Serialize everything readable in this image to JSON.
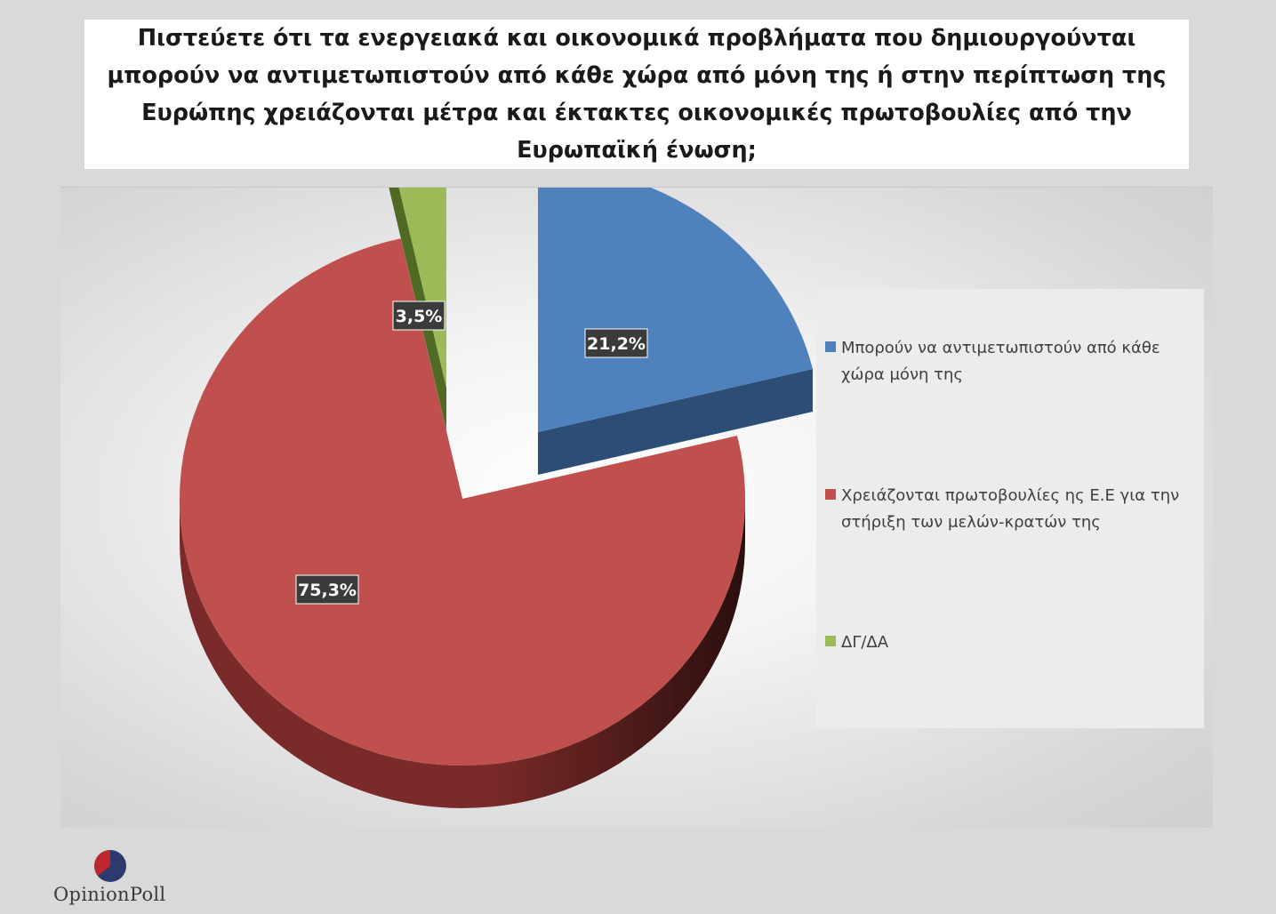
{
  "title": "Πιστεύετε ότι τα ενεργειακά και οικονομικά προβλήματα που δημιουργούνται μπορούν να αντιμετωπιστούν από κάθε χώρα από μόνη της ή στην περίπτωση της Ευρώπης χρειάζονται μέτρα και έκτακτες οικονομικές πρωτοβουλίες από την Ευρωπαϊκή ένωση;",
  "chart_data": {
    "type": "pie",
    "style": "3d exploded",
    "legend_position": "right",
    "slices": [
      {
        "label": "Μπορούν να αντιμετωπιστούν από κάθε χώρα μόνη της",
        "value": 21.2,
        "value_label": "21,2%",
        "color": "#4f81bd",
        "side_color": "#2c4d75"
      },
      {
        "label": "Χρειάζονται πρωτοβουλίες ης Ε.Ε για την στήριξη των μελών-κρατών της",
        "value": 75.3,
        "value_label": "75,3%",
        "color": "#c0504d",
        "side_color": "#7a2a28"
      },
      {
        "label": "ΔΓ/ΔΑ",
        "value": 3.5,
        "value_label": "3,5%",
        "color": "#9bbb59",
        "side_color": "#4f6a22"
      }
    ]
  },
  "logo": {
    "text_part1": "Opinion",
    "text_part2": "Poll",
    "colors": [
      "#c0272d",
      "#2e3a6e"
    ]
  }
}
